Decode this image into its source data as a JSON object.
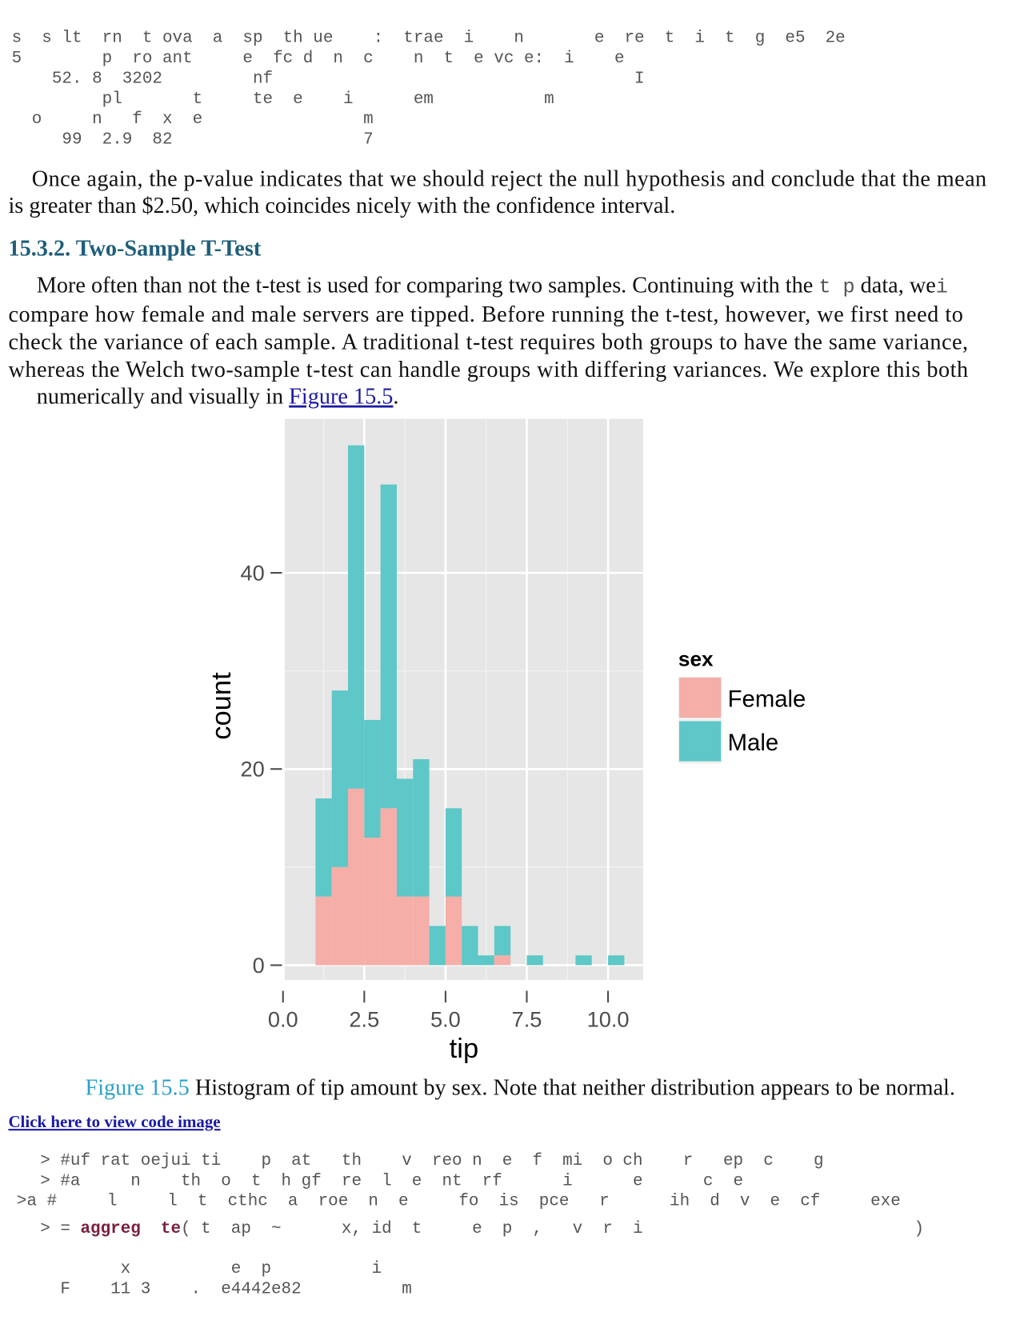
{
  "code_top": [
    "s  s lt  rn  t ova  a  sp  th ue    :  trae  i    n       e  re  t  i  t  g  e5  2e",
    "5        p  ro ant     e  fc d  n  c    n  t  e vc e:  i    e",
    "    52. 8  3202         nf                                    I",
    "         pl       t     te  e    i      em           m",
    "  o     n   f  x  e                m",
    "     99  2.9  82                   7"
  ],
  "paragraph_1": [
    "Once again, the p-value indicates that we should reject the null hypothesis and conclude that the mean",
    "is greater than $2.50, which coincides nicely with the confidence interval."
  ],
  "heading": "15.3.2. Two-Sample T-Test",
  "paragraph_2": {
    "line_1": [
      "More often than not the t-test is used for comparing two samples. Continuing with the ",
      "t p",
      " data, we",
      "i"
    ],
    "lines": [
      "compare how female and male servers are tipped. Before running the t-test, however, we first need to",
      "check the variance of each sample. A traditional t-test requires both groups to have the same variance,",
      "whereas the Welch two-sample t-test can handle groups with differing variances. We explore this both"
    ],
    "last_line": [
      "numerically and visually in ",
      "Figure 15.5",
      "."
    ]
  },
  "figure": {
    "chart": {
      "type": "histogram",
      "x_label": "tip",
      "y_label": "count",
      "bins": [
        1.0,
        1.5,
        2.0,
        2.5,
        3.0,
        3.5,
        4.0,
        4.5,
        5.0,
        5.5,
        6.0,
        6.5,
        7.0,
        7.5,
        8.0,
        8.5,
        9.0,
        9.5,
        10.0,
        10.5
      ],
      "stacked": true,
      "series": [
        {
          "name": "Female",
          "color": "#f5aea8",
          "values": [
            7,
            10,
            18,
            13,
            16,
            7,
            7,
            0,
            7,
            0,
            0,
            1,
            0,
            0,
            0,
            0,
            0,
            0,
            0
          ]
        },
        {
          "name": "Male",
          "color": "#5ec7c7",
          "values": [
            10,
            18,
            35,
            12,
            33,
            12,
            14,
            4,
            9,
            4,
            1,
            3,
            0,
            1,
            0,
            0,
            1,
            0,
            1
          ]
        }
      ],
      "legend_title": "sex",
      "legend": "right",
      "xlim": [
        -0.05,
        11.08
      ],
      "ylim": [
        -1.5,
        55.7
      ],
      "xticks": [
        {
          "value": 0,
          "label": "0.0"
        },
        2.5,
        {
          "value": 5,
          "label": "5.0"
        },
        7.5,
        {
          "value": 10,
          "label": "10.0"
        }
      ],
      "yticks": [
        0,
        20,
        40
      ],
      "grid": true
    },
    "caption_label": "Figure 15.5",
    "caption": " Histogram of tip amount by sex. Note that neither distribution appears to be normal."
  },
  "code_link": "Click here to view code image",
  "code_bottom": [
    "> #uf rat oejui ti    p  at   th    v  reo n  e  f  mi  o ch    r   ep  c    g",
    "> #a     n    th  o  t  h gf  re  l  e  nt  rf      i      e      c  e",
    ">a #     l     l  t  cthc  a  roe  n  e     fo  is  pce   r      ih  d  v  e  cf     exe                e",
    [
      "> = ",
      "aggreg  te",
      "( t  ap  ~      x, id  t     e  p  ,   v  r  i                           )"
    ],
    "        x          e  p          i",
    "  F    11 3    .  e4442e82          m"
  ]
}
